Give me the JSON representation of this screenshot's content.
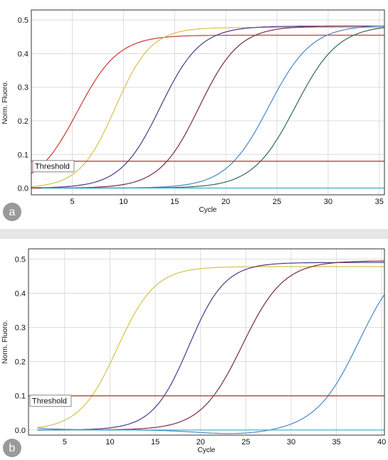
{
  "chart_data": [
    {
      "type": "line",
      "panel_label": "a",
      "xlabel": "Cycle",
      "ylabel": "Norm. Fluoro.",
      "xlim": [
        1,
        35.5
      ],
      "ylim": [
        -0.02,
        0.53
      ],
      "xticks": [
        5,
        10,
        15,
        20,
        25,
        30,
        35
      ],
      "yticks": [
        0.0,
        0.1,
        0.2,
        0.3,
        0.4,
        0.5
      ],
      "grid": true,
      "threshold": {
        "label": "Threshold",
        "value": 0.08,
        "color": "#c0282d"
      },
      "series": [
        {
          "color": "#c8393a",
          "plateau": 0.455,
          "midpoint": 5.5,
          "slope": 2.0,
          "start": 0.0
        },
        {
          "color": "#d8c04a",
          "plateau": 0.478,
          "midpoint": 9.2,
          "slope": 1.75,
          "start": 0.0
        },
        {
          "color": "#4a3a8c",
          "plateau": 0.482,
          "midpoint": 13.6,
          "slope": 1.95,
          "start": 0.0
        },
        {
          "color": "#7a2a4a",
          "plateau": 0.482,
          "midpoint": 17.4,
          "slope": 1.95,
          "start": 0.0
        },
        {
          "color": "#4a86c8",
          "plateau": 0.485,
          "midpoint": 24.2,
          "slope": 2.1,
          "start": 1.0
        },
        {
          "color": "#2e6a5a",
          "plateau": 0.485,
          "midpoint": 26.8,
          "slope": 2.1,
          "start": 1.0
        },
        {
          "color": "#36b0c8",
          "plateau": 0.0,
          "midpoint": 0,
          "slope": 1,
          "start": 1.0,
          "flat": true
        }
      ]
    },
    {
      "type": "line",
      "panel_label": "b",
      "xlabel": "Cycle",
      "ylabel": "Norm. Fluoro.",
      "xlim": [
        1,
        40.3
      ],
      "ylim": [
        -0.015,
        0.53
      ],
      "xticks": [
        5,
        10,
        15,
        20,
        25,
        30,
        35,
        40
      ],
      "yticks": [
        0.0,
        0.1,
        0.2,
        0.3,
        0.4,
        0.5
      ],
      "grid": true,
      "threshold": {
        "label": "Threshold",
        "value": 0.1,
        "color": "#c0282d"
      },
      "series": [
        {
          "color": "#d8c04a",
          "plateau": 0.478,
          "midpoint": 10.8,
          "slope": 2.1,
          "start": 1.0
        },
        {
          "color": "#4a3a8c",
          "plateau": 0.49,
          "midpoint": 18.7,
          "slope": 2.0,
          "start": 1.0
        },
        {
          "color": "#7a2a4a",
          "plateau": 0.495,
          "midpoint": 24.6,
          "slope": 2.3,
          "start": 1.0
        },
        {
          "color": "#4a86c8",
          "plateau": 0.52,
          "midpoint": 37.5,
          "slope": 2.4,
          "start": 1.0,
          "dip": true
        },
        {
          "color": "#36b0c8",
          "plateau": 0.0,
          "midpoint": 0,
          "slope": 1,
          "start": 1.0,
          "flat": true
        }
      ]
    }
  ],
  "panel_badge_color": "#9a9a9a"
}
